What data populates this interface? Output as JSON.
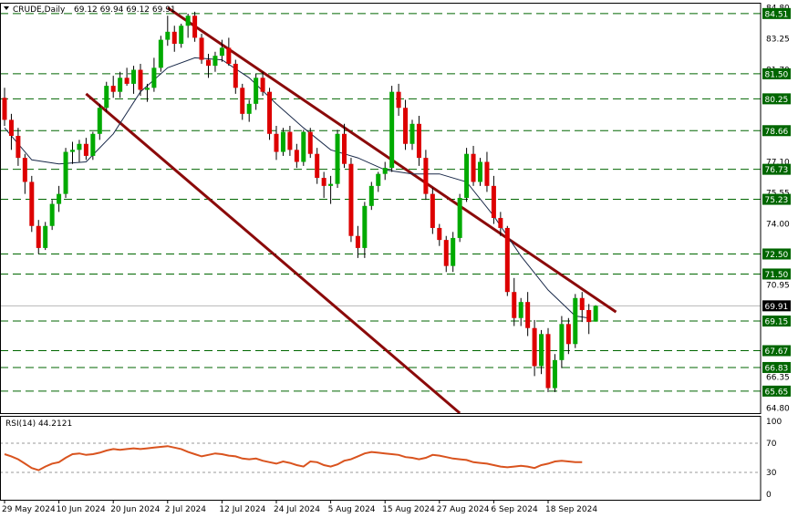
{
  "header": {
    "symbol_timeframe": "CRUDE,Daily",
    "ohlc": "69.12 69.94 69.12 69.91"
  },
  "rsi_panel": {
    "label": "RSI(14) 44.2121"
  },
  "colors": {
    "bull": "#00aa00",
    "bear": "#dd0000",
    "ma": "#1a2a4a",
    "channel": "#8b0a0a",
    "level_line": "#006600",
    "current_label_bg": "#000000",
    "rsi_line": "#d9531e"
  },
  "chart_data": [
    {
      "type": "candlestick",
      "title": "CRUDE,Daily",
      "yticks": [
        64.8,
        66.35,
        70.95,
        74.0,
        75.55,
        77.1,
        81.7,
        83.25,
        84.8
      ],
      "ylim": [
        64.55,
        85.05
      ],
      "price_levels": [
        84.51,
        81.5,
        80.25,
        78.66,
        76.73,
        75.23,
        72.5,
        71.5,
        69.15,
        67.67,
        66.83,
        65.65
      ],
      "current_price": 69.91,
      "x_tick_labels": [
        {
          "i": 0,
          "label": "29 May 2024"
        },
        {
          "i": 8,
          "label": "10 Jun 2024"
        },
        {
          "i": 16,
          "label": "20 Jun 2024"
        },
        {
          "i": 24,
          "label": "2 Jul 2024"
        },
        {
          "i": 32,
          "label": "12 Jul 2024"
        },
        {
          "i": 40,
          "label": "24 Jul 2024"
        },
        {
          "i": 48,
          "label": "5 Aug 2024"
        },
        {
          "i": 56,
          "label": "15 Aug 2024"
        },
        {
          "i": 64,
          "label": "27 Aug 2024"
        },
        {
          "i": 72,
          "label": "6 Sep 2024"
        },
        {
          "i": 80,
          "label": "18 Sep 2024"
        }
      ],
      "candles": [
        [
          80.3,
          80.8,
          78.9,
          79.2
        ],
        [
          79.2,
          79.5,
          77.7,
          78.4
        ],
        [
          78.4,
          78.8,
          76.9,
          77.3
        ],
        [
          77.3,
          77.5,
          75.5,
          76.1
        ],
        [
          76.1,
          76.4,
          73.6,
          73.9
        ],
        [
          73.9,
          74.2,
          72.5,
          72.8
        ],
        [
          72.8,
          74.1,
          72.7,
          73.9
        ],
        [
          73.9,
          75.2,
          73.7,
          75.0
        ],
        [
          75.0,
          75.9,
          74.6,
          75.5
        ],
        [
          75.5,
          77.8,
          75.3,
          77.6
        ],
        [
          77.6,
          78.1,
          77.0,
          77.7
        ],
        [
          77.7,
          78.2,
          77.1,
          78.0
        ],
        [
          78.0,
          78.3,
          77.2,
          77.4
        ],
        [
          77.4,
          78.6,
          77.2,
          78.5
        ],
        [
          78.5,
          80.0,
          78.2,
          79.8
        ],
        [
          79.8,
          81.1,
          79.6,
          80.9
        ],
        [
          80.9,
          81.4,
          80.3,
          80.6
        ],
        [
          80.6,
          81.6,
          80.3,
          81.3
        ],
        [
          81.3,
          81.8,
          80.9,
          81.0
        ],
        [
          81.0,
          81.9,
          80.5,
          81.7
        ],
        [
          81.7,
          82.0,
          80.4,
          80.7
        ],
        [
          80.7,
          81.0,
          80.1,
          80.8
        ],
        [
          80.8,
          82.3,
          80.6,
          81.8
        ],
        [
          81.8,
          83.4,
          81.6,
          83.2
        ],
        [
          83.2,
          84.4,
          82.9,
          83.6
        ],
        [
          83.6,
          83.9,
          82.6,
          83.0
        ],
        [
          83.0,
          84.0,
          82.8,
          83.9
        ],
        [
          83.9,
          84.5,
          83.3,
          84.4
        ],
        [
          84.4,
          84.6,
          83.1,
          83.3
        ],
        [
          83.3,
          83.5,
          82.0,
          82.2
        ],
        [
          82.2,
          82.5,
          81.3,
          81.9
        ],
        [
          81.9,
          82.6,
          81.6,
          82.4
        ],
        [
          82.4,
          83.2,
          82.1,
          82.8
        ],
        [
          82.8,
          83.3,
          81.9,
          82.0
        ],
        [
          82.0,
          82.2,
          80.5,
          80.8
        ],
        [
          80.8,
          81.0,
          79.2,
          79.5
        ],
        [
          79.5,
          80.2,
          79.1,
          80.0
        ],
        [
          80.0,
          81.5,
          79.7,
          81.3
        ],
        [
          81.3,
          81.6,
          80.4,
          80.6
        ],
        [
          80.6,
          80.8,
          78.2,
          78.5
        ],
        [
          78.5,
          78.9,
          77.2,
          77.6
        ],
        [
          77.6,
          78.8,
          77.4,
          78.6
        ],
        [
          78.6,
          78.9,
          77.4,
          77.7
        ],
        [
          77.7,
          78.0,
          76.8,
          77.1
        ],
        [
          77.1,
          78.7,
          76.9,
          78.6
        ],
        [
          78.6,
          78.8,
          77.3,
          77.5
        ],
        [
          77.5,
          77.8,
          76.0,
          76.3
        ],
        [
          76.3,
          76.6,
          75.3,
          75.9
        ],
        [
          75.9,
          76.4,
          75.0,
          76.0
        ],
        [
          76.0,
          78.7,
          75.8,
          78.5
        ],
        [
          78.5,
          79.0,
          76.8,
          77.0
        ],
        [
          77.0,
          77.3,
          73.1,
          73.4
        ],
        [
          73.4,
          73.9,
          72.3,
          72.8
        ],
        [
          72.8,
          75.1,
          72.3,
          74.9
        ],
        [
          74.9,
          76.1,
          74.7,
          75.9
        ],
        [
          75.9,
          76.6,
          75.6,
          76.5
        ],
        [
          76.5,
          77.1,
          76.2,
          76.8
        ],
        [
          76.8,
          80.9,
          76.6,
          80.6
        ],
        [
          80.6,
          81.0,
          79.4,
          79.8
        ],
        [
          79.8,
          80.2,
          77.7,
          78.0
        ],
        [
          78.0,
          79.2,
          77.7,
          79.0
        ],
        [
          79.0,
          79.4,
          76.9,
          77.3
        ],
        [
          77.3,
          77.7,
          75.2,
          75.5
        ],
        [
          75.5,
          75.8,
          73.5,
          73.8
        ],
        [
          73.8,
          74.0,
          72.9,
          73.2
        ],
        [
          73.2,
          73.4,
          71.6,
          71.9
        ],
        [
          71.9,
          73.6,
          71.6,
          73.3
        ],
        [
          73.3,
          75.5,
          73.1,
          75.3
        ],
        [
          75.3,
          77.8,
          75.1,
          77.5
        ],
        [
          77.5,
          77.9,
          75.9,
          76.1
        ],
        [
          76.1,
          77.3,
          75.9,
          77.1
        ],
        [
          77.1,
          77.6,
          75.6,
          75.9
        ],
        [
          75.9,
          76.4,
          74.0,
          74.3
        ],
        [
          74.3,
          74.6,
          73.4,
          73.8
        ],
        [
          73.8,
          73.9,
          70.4,
          70.6
        ],
        [
          70.6,
          71.3,
          68.9,
          69.3
        ],
        [
          69.3,
          70.3,
          68.9,
          70.1
        ],
        [
          70.1,
          70.6,
          68.4,
          68.8
        ],
        [
          68.8,
          69.2,
          66.4,
          66.9
        ],
        [
          66.9,
          68.7,
          66.5,
          68.5
        ],
        [
          68.5,
          68.8,
          65.6,
          65.8
        ],
        [
          65.8,
          67.5,
          65.6,
          67.2
        ],
        [
          67.2,
          69.4,
          66.8,
          69.0
        ],
        [
          69.0,
          69.3,
          67.5,
          68.0
        ],
        [
          68.0,
          70.5,
          67.8,
          70.3
        ],
        [
          70.3,
          70.6,
          69.1,
          69.7
        ],
        [
          69.7,
          70.0,
          68.5,
          69.1
        ],
        [
          69.12,
          69.94,
          69.12,
          69.91
        ]
      ],
      "moving_average": [
        [
          0,
          78.8
        ],
        [
          4,
          77.2
        ],
        [
          8,
          77.0
        ],
        [
          12,
          77.1
        ],
        [
          16,
          78.5
        ],
        [
          20,
          80.6
        ],
        [
          24,
          81.8
        ],
        [
          28,
          82.3
        ],
        [
          32,
          82.2
        ],
        [
          36,
          81.3
        ],
        [
          40,
          80.0
        ],
        [
          44,
          78.8
        ],
        [
          48,
          77.7
        ],
        [
          52,
          77.3
        ],
        [
          56,
          76.7
        ],
        [
          60,
          76.5
        ],
        [
          64,
          76.5
        ],
        [
          68,
          76.1
        ],
        [
          72,
          74.4
        ],
        [
          76,
          72.4
        ],
        [
          80,
          70.7
        ],
        [
          84,
          69.4
        ],
        [
          86,
          69.3
        ]
      ],
      "channel_upper": [
        [
          24,
          84.8
        ],
        [
          90,
          69.6
        ]
      ],
      "channel_lower": [
        [
          12,
          80.5
        ],
        [
          67,
          64.55
        ]
      ]
    },
    {
      "type": "line",
      "title": "RSI(14) 44.2121",
      "yticks": [
        100,
        70,
        30,
        0
      ],
      "ylim": [
        0,
        100
      ],
      "levels": [
        70,
        30
      ],
      "values": [
        55,
        52,
        48,
        42,
        36,
        33,
        38,
        42,
        44,
        50,
        55,
        56,
        54,
        55,
        57,
        60,
        62,
        61,
        62,
        63,
        62,
        63,
        64,
        65,
        66,
        64,
        62,
        58,
        55,
        52,
        54,
        56,
        55,
        53,
        52,
        49,
        48,
        49,
        46,
        44,
        42,
        45,
        43,
        40,
        38,
        45,
        44,
        40,
        38,
        41,
        46,
        48,
        52,
        56,
        58,
        57,
        56,
        55,
        54,
        51,
        50,
        48,
        50,
        54,
        53,
        51,
        49,
        48,
        47,
        44,
        43,
        42,
        40,
        38,
        37,
        38,
        39,
        38,
        36,
        40,
        42,
        45,
        46,
        45,
        44,
        44
      ]
    }
  ]
}
